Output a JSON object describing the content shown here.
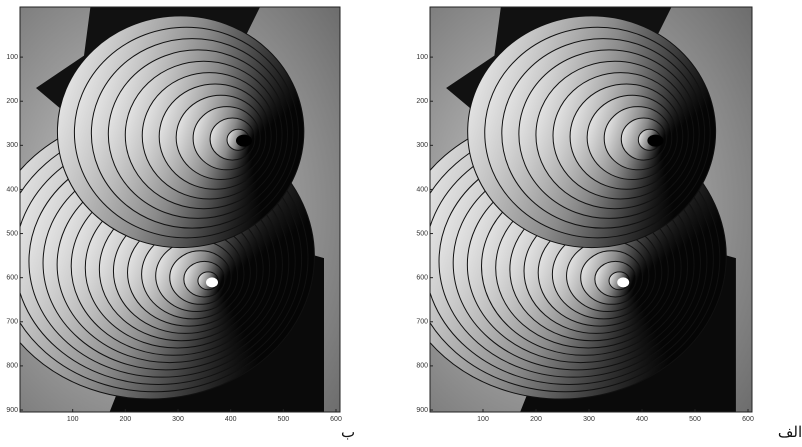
{
  "panels": [
    {
      "label": "ب",
      "xlim": [
        0,
        600
      ],
      "ylim": [
        0,
        900
      ],
      "xticks": [
        100,
        200,
        300,
        400,
        500,
        600
      ],
      "yticks": [
        100,
        200,
        300,
        400,
        500,
        600,
        700,
        800,
        900
      ]
    },
    {
      "label": "الف",
      "xlim": [
        0,
        600
      ],
      "ylim": [
        0,
        900
      ],
      "xticks": [
        100,
        200,
        300,
        400,
        500,
        600
      ],
      "yticks": [
        100,
        200,
        300,
        400,
        500,
        600,
        700,
        800,
        900
      ]
    }
  ]
}
